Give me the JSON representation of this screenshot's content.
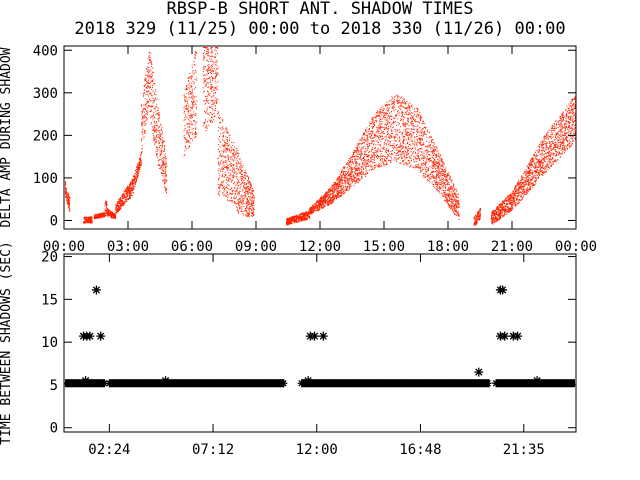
{
  "title": "RBSP-B SHORT ANT. SHADOW TIMES",
  "subtitle": "2018 329 (11/25) 00:00 to 2018 330 (11/26) 00:00",
  "colors": {
    "amp": "#ff2200",
    "shadow": "#000000",
    "axes": "#000000"
  },
  "chart_data": [
    {
      "type": "scatter",
      "name": "top",
      "ylabel": "DELTA AMP DURING SHADOW",
      "xlabel": "",
      "xlim": [
        0,
        24
      ],
      "ylim": [
        -20,
        410
      ],
      "x_tick_values": [
        0,
        3,
        6,
        9,
        12,
        15,
        18,
        21,
        24
      ],
      "x_tick_labels": [
        "00:00",
        "03:00",
        "06:00",
        "09:00",
        "12:00",
        "15:00",
        "18:00",
        "21:00",
        "00:00"
      ],
      "y_tick_values": [
        0,
        100,
        200,
        300,
        400
      ],
      "y_tick_labels": [
        "0",
        "100",
        "200",
        "300",
        "400"
      ],
      "marker": "dot",
      "grid": false,
      "bands": [
        {
          "x": [
            0.0,
            0.25
          ],
          "low": [
            60,
            20
          ],
          "high": [
            95,
            55
          ]
        },
        {
          "x": [
            0.9,
            1.3
          ],
          "low": [
            -5,
            -5
          ],
          "high": [
            10,
            10
          ]
        },
        {
          "x": [
            1.4,
            1.9
          ],
          "low": [
            5,
            10
          ],
          "high": [
            15,
            20
          ]
        },
        {
          "x": [
            1.9,
            2.0
          ],
          "low": [
            10,
            15
          ],
          "high": [
            45,
            50
          ]
        },
        {
          "x": [
            2.0,
            2.4
          ],
          "low": [
            10,
            5
          ],
          "high": [
            30,
            15
          ]
        },
        {
          "x": [
            2.4,
            3.2
          ],
          "low": [
            15,
            60
          ],
          "high": [
            40,
            100
          ]
        },
        {
          "x": [
            3.2,
            3.6
          ],
          "low": [
            60,
            130
          ],
          "high": [
            100,
            160
          ]
        },
        {
          "x": [
            3.6,
            4.0
          ],
          "low": [
            150,
            280
          ],
          "high": [
            280,
            410
          ]
        },
        {
          "x": [
            4.0,
            4.3
          ],
          "low": [
            250,
            150
          ],
          "high": [
            410,
            300
          ]
        },
        {
          "x": [
            4.3,
            4.8
          ],
          "low": [
            150,
            60
          ],
          "high": [
            300,
            150
          ]
        },
        {
          "x": [
            5.6,
            6.2
          ],
          "low": [
            150,
            200
          ],
          "high": [
            300,
            410
          ]
        },
        {
          "x": [
            6.5,
            7.2
          ],
          "low": [
            200,
            250
          ],
          "high": [
            410,
            410
          ]
        },
        {
          "x": [
            7.2,
            8.0
          ],
          "low": [
            60,
            40
          ],
          "high": [
            260,
            180
          ]
        },
        {
          "x": [
            8.0,
            8.9
          ],
          "low": [
            20,
            5
          ],
          "high": [
            180,
            70
          ]
        },
        {
          "x": [
            10.4,
            11.5
          ],
          "low": [
            -10,
            5
          ],
          "high": [
            5,
            25
          ]
        },
        {
          "x": [
            11.5,
            12.5
          ],
          "low": [
            15,
            40
          ],
          "high": [
            30,
            80
          ]
        },
        {
          "x": [
            12.5,
            13.5
          ],
          "low": [
            40,
            80
          ],
          "high": [
            80,
            160
          ]
        },
        {
          "x": [
            13.5,
            14.5
          ],
          "low": [
            80,
            120
          ],
          "high": [
            160,
            250
          ]
        },
        {
          "x": [
            14.5,
            15.5
          ],
          "low": [
            120,
            140
          ],
          "high": [
            250,
            300
          ]
        },
        {
          "x": [
            15.5,
            16.5
          ],
          "low": [
            140,
            120
          ],
          "high": [
            300,
            270
          ]
        },
        {
          "x": [
            16.5,
            17.5
          ],
          "low": [
            120,
            70
          ],
          "high": [
            270,
            170
          ]
        },
        {
          "x": [
            17.5,
            18.5
          ],
          "low": [
            70,
            0
          ],
          "high": [
            170,
            60
          ]
        },
        {
          "x": [
            19.2,
            19.5
          ],
          "low": [
            -15,
            5
          ],
          "high": [
            10,
            30
          ]
        },
        {
          "x": [
            20.0,
            21.0
          ],
          "low": [
            -10,
            25
          ],
          "high": [
            20,
            70
          ]
        },
        {
          "x": [
            21.0,
            22.5
          ],
          "low": [
            25,
            110
          ],
          "high": [
            70,
            200
          ]
        },
        {
          "x": [
            22.5,
            24.0
          ],
          "low": [
            110,
            190
          ],
          "high": [
            200,
            300
          ]
        }
      ]
    },
    {
      "type": "scatter",
      "name": "bottom",
      "ylabel": "TIME BETWEEN SHADOWS (SEC)",
      "xlabel": "",
      "xlim": [
        0.3,
        24
      ],
      "ylim": [
        -0.5,
        20.3
      ],
      "x_tick_values": [
        2.4,
        7.2,
        12.0,
        16.8,
        21.5833
      ],
      "x_tick_labels": [
        "02:24",
        "07:12",
        "12:00",
        "16:48",
        "21:35"
      ],
      "y_tick_values": [
        0,
        5,
        10,
        15,
        20
      ],
      "y_tick_labels": [
        "0",
        "5",
        "10",
        "15",
        "20"
      ],
      "marker": "asterisk",
      "grid": false,
      "baseline_value": 5.2,
      "baseline_segments": [
        [
          0.3,
          2.2
        ],
        [
          2.4,
          10.5
        ],
        [
          11.3,
          20.0
        ],
        [
          20.3,
          24.0
        ]
      ],
      "points": [
        {
          "x": 1.2,
          "y": 10.7
        },
        {
          "x": 1.35,
          "y": 10.7
        },
        {
          "x": 1.5,
          "y": 10.7
        },
        {
          "x": 1.8,
          "y": 16.1
        },
        {
          "x": 2.0,
          "y": 10.7
        },
        {
          "x": 1.3,
          "y": 5.5
        },
        {
          "x": 5.0,
          "y": 5.5
        },
        {
          "x": 11.7,
          "y": 10.7
        },
        {
          "x": 11.9,
          "y": 10.7
        },
        {
          "x": 12.3,
          "y": 10.7
        },
        {
          "x": 11.6,
          "y": 5.5
        },
        {
          "x": 19.5,
          "y": 6.5
        },
        {
          "x": 20.5,
          "y": 16.1
        },
        {
          "x": 20.6,
          "y": 16.1
        },
        {
          "x": 20.5,
          "y": 10.7
        },
        {
          "x": 20.7,
          "y": 10.7
        },
        {
          "x": 21.1,
          "y": 10.7
        },
        {
          "x": 21.3,
          "y": 10.7
        },
        {
          "x": 22.2,
          "y": 5.5
        }
      ]
    }
  ]
}
